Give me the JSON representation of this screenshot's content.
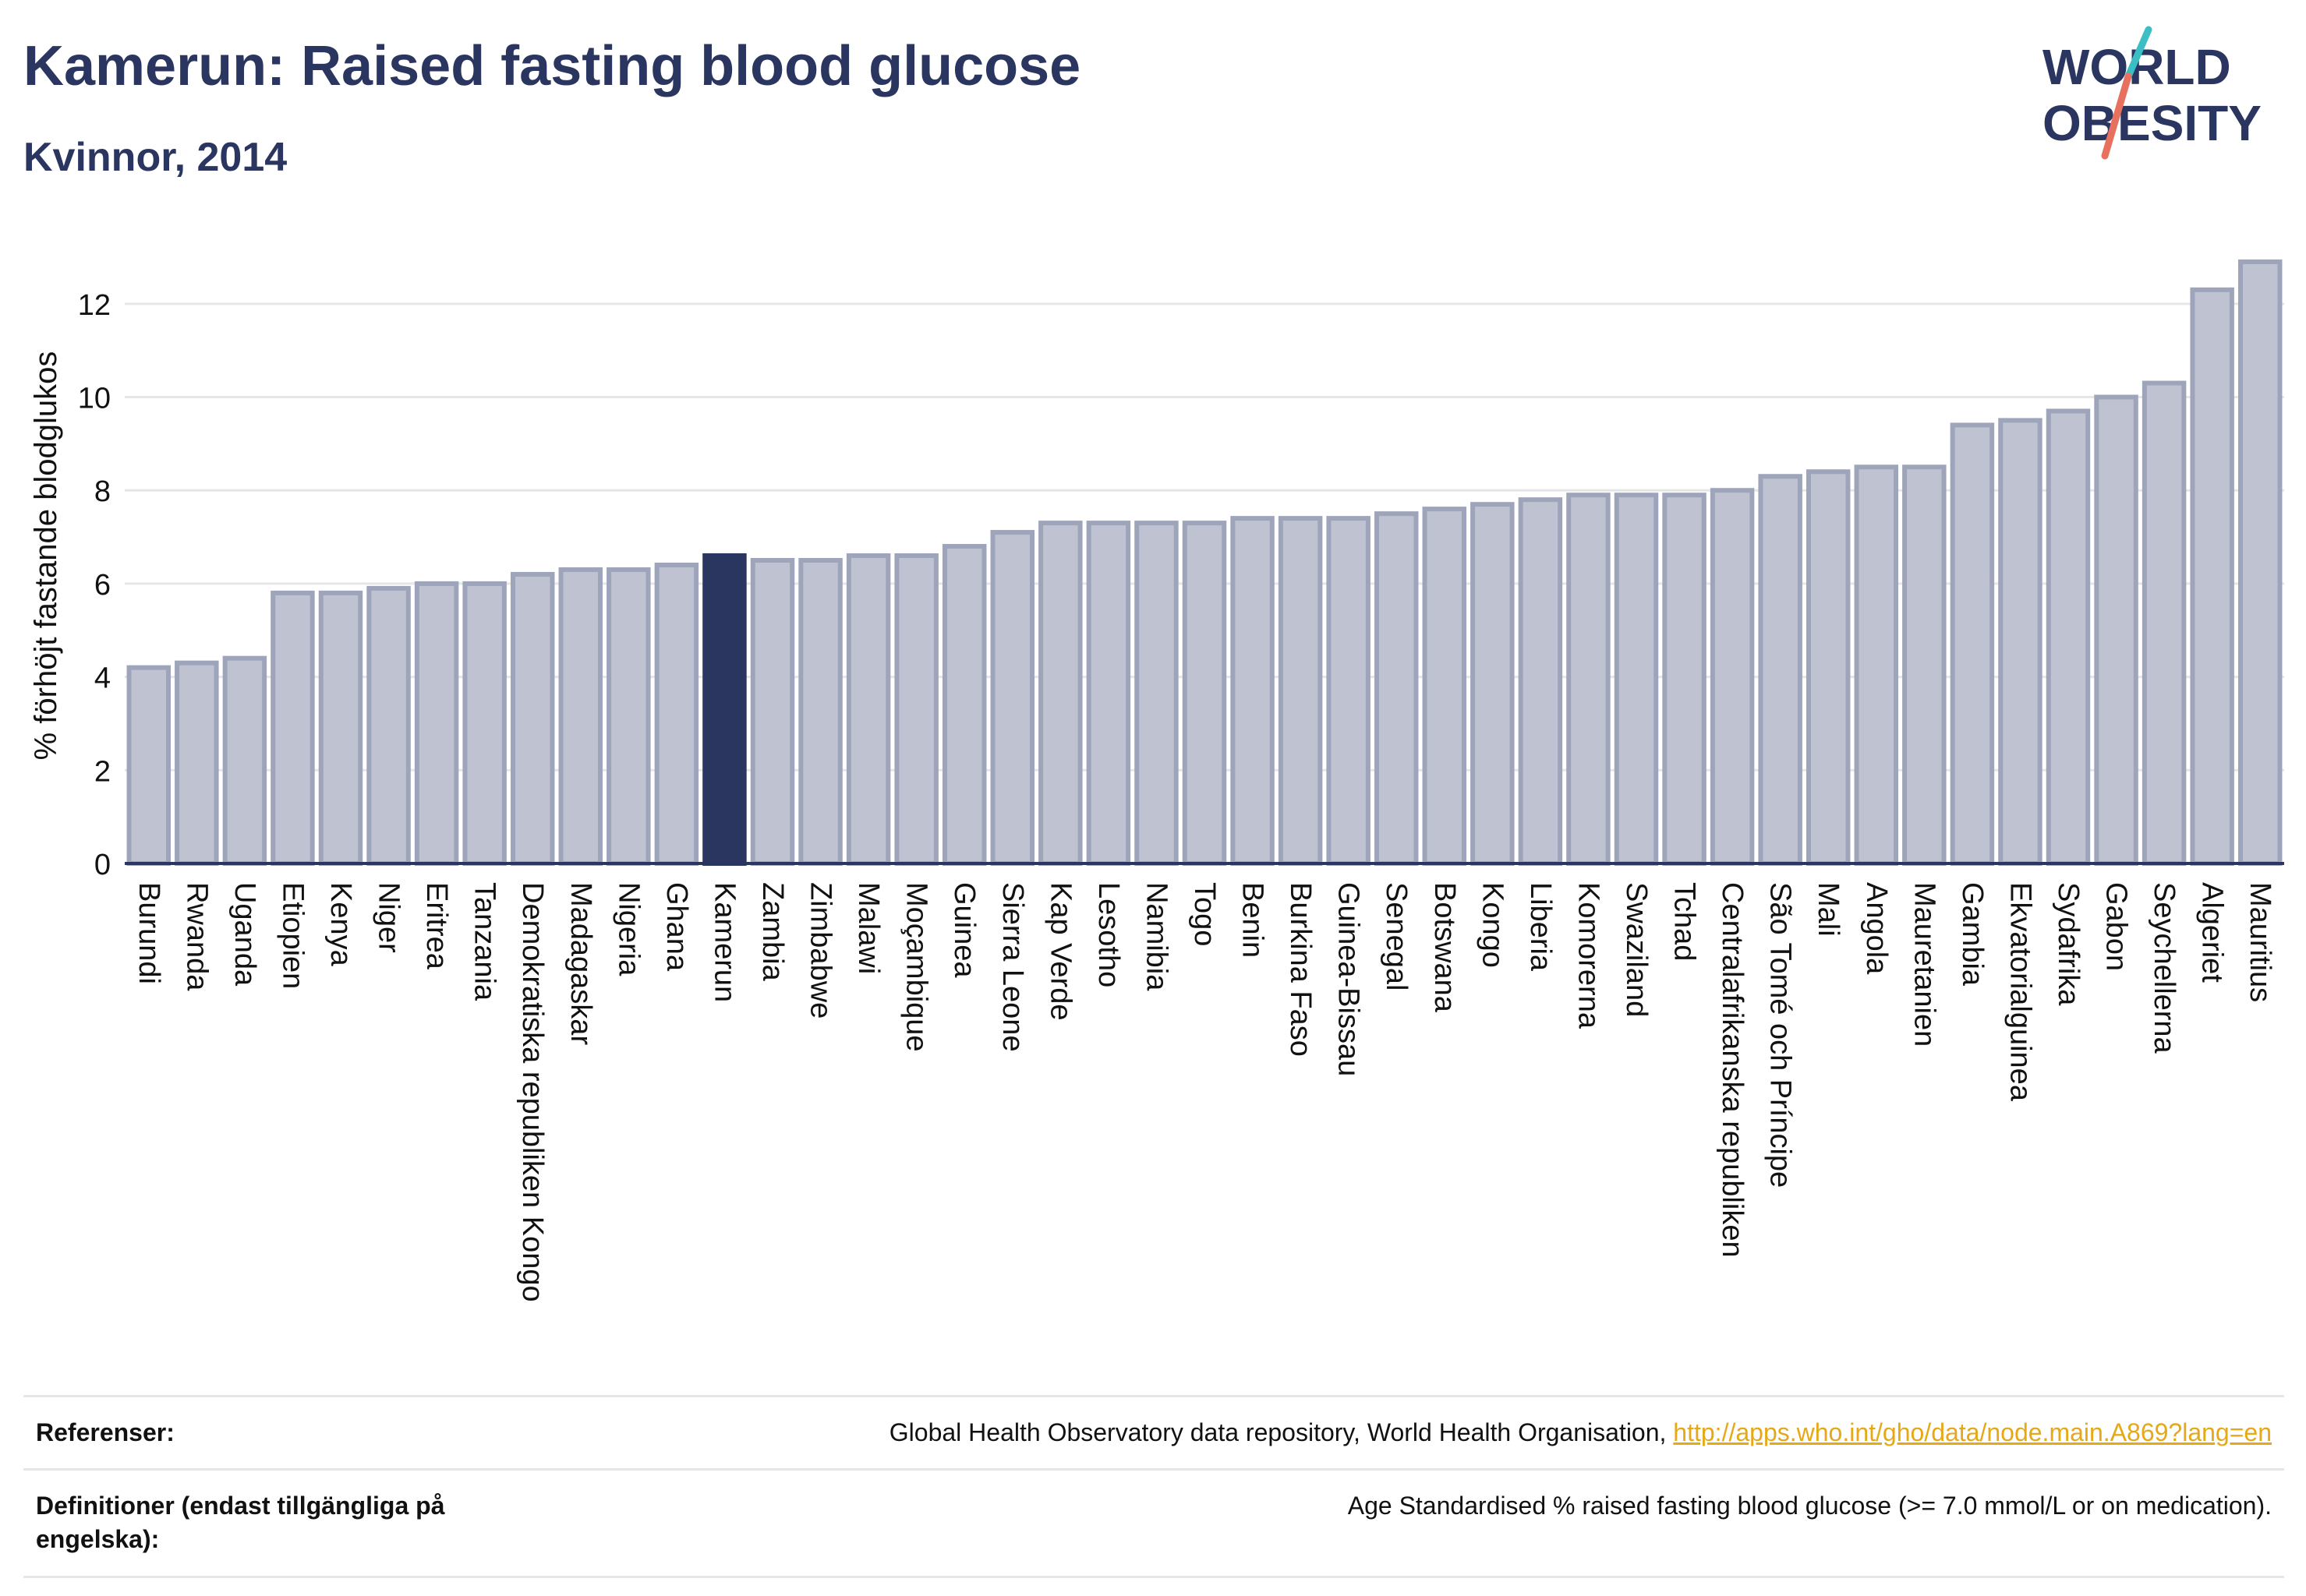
{
  "header": {
    "title": "Kamerun: Raised fasting blood glucose",
    "subtitle": "Kvinnor, 2014"
  },
  "logo": {
    "line1": "WORLD",
    "line2": "OBESITY",
    "slash_colors": [
      "#3bbfc4",
      "#e8705e"
    ]
  },
  "colors": {
    "bar_default": "#bfc3d1",
    "bar_border": "#9ea4ba",
    "bar_highlight": "#2a3560",
    "text": "#2a3560",
    "link": "#e6a817"
  },
  "chart_data": {
    "type": "bar",
    "ylabel": "% förhöjt fastande blodglukos",
    "ylim": [
      0,
      13.2
    ],
    "yticks": [
      0,
      2,
      4,
      6,
      8,
      10,
      12
    ],
    "grid": true,
    "highlight": "Kamerun",
    "categories": [
      "Burundi",
      "Rwanda",
      "Uganda",
      "Etiopien",
      "Kenya",
      "Niger",
      "Eritrea",
      "Tanzania",
      "Demokratiska republiken Kongo",
      "Madagaskar",
      "Nigeria",
      "Ghana",
      "Kamerun",
      "Zambia",
      "Zimbabwe",
      "Malawi",
      "Moçambique",
      "Guinea",
      "Sierra Leone",
      "Kap Verde",
      "Lesotho",
      "Namibia",
      "Togo",
      "Benin",
      "Burkina Faso",
      "Guinea-Bissau",
      "Senegal",
      "Botswana",
      "Kongo",
      "Liberia",
      "Komorerna",
      "Swaziland",
      "Tchad",
      "Centralafrikanska republiken",
      "São Tomé och Príncipe",
      "Mali",
      "Angola",
      "Mauretanien",
      "Gambia",
      "Ekvatorialguinea",
      "Sydafrika",
      "Gabon",
      "Seychellerna",
      "Algeriet",
      "Mauritius"
    ],
    "values": [
      4.2,
      4.3,
      4.4,
      5.8,
      5.8,
      5.9,
      6.0,
      6.0,
      6.2,
      6.3,
      6.3,
      6.4,
      6.6,
      6.5,
      6.5,
      6.6,
      6.6,
      6.8,
      7.1,
      7.3,
      7.3,
      7.3,
      7.3,
      7.4,
      7.4,
      7.4,
      7.5,
      7.6,
      7.7,
      7.8,
      7.9,
      7.9,
      7.9,
      8.0,
      8.3,
      8.4,
      8.5,
      8.5,
      9.4,
      9.5,
      9.7,
      10.0,
      10.3,
      12.3,
      12.9
    ]
  },
  "references": {
    "ref_label": "Referenser:",
    "ref_text": "Global Health Observatory data repository, World Health Organisation, ",
    "ref_link": "http://apps.who.int/gho/data/node.main.A869?lang=en",
    "def_label": "Definitioner (endast tillgängliga på engelska):",
    "def_text": "Age Standardised % raised fasting blood glucose (>= 7.0 mmol/L or on medication)."
  }
}
